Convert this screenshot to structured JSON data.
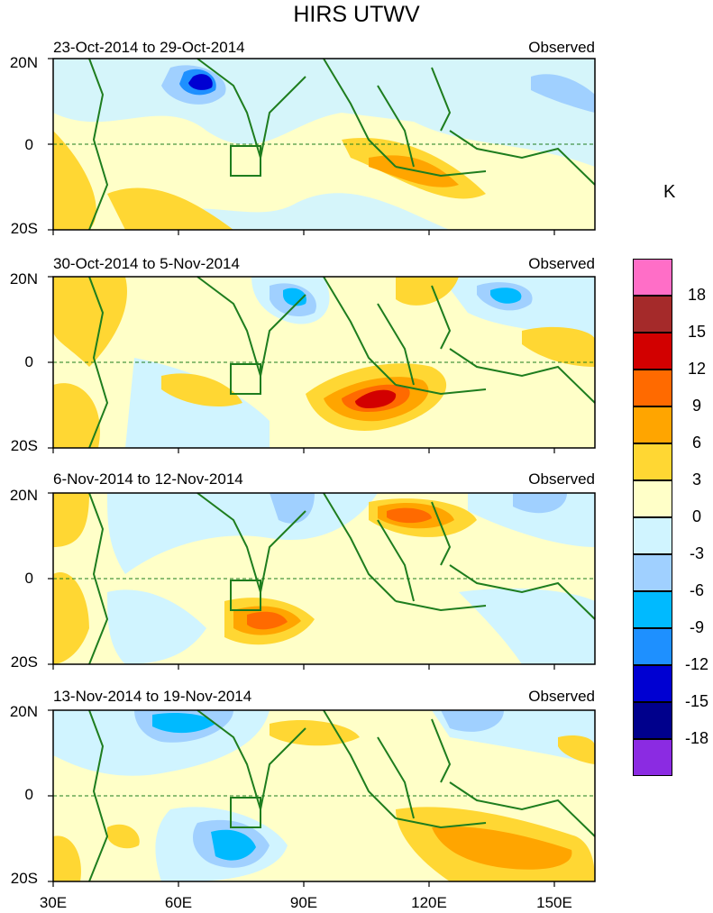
{
  "figure": {
    "title": "HIRS UTWV",
    "units": "K",
    "panel_label": "Observed",
    "y_ticks": [
      "20N",
      "0",
      "20S"
    ],
    "x_ticks": [
      "30E",
      "60E",
      "90E",
      "120E",
      "150E"
    ]
  },
  "panels": [
    {
      "period": "23-Oct-2014 to 29-Oct-2014"
    },
    {
      "period": "30-Oct-2014 to 5-Nov-2014"
    },
    {
      "period": "6-Nov-2014 to 12-Nov-2014"
    },
    {
      "period": "13-Nov-2014 to 19-Nov-2014"
    }
  ],
  "colorbar": {
    "labels": [
      "18",
      "15",
      "12",
      "9",
      "6",
      "3",
      "0",
      "-3",
      "-6",
      "-9",
      "-12",
      "-15",
      "-18"
    ],
    "colors": [
      "#ff6ec7",
      "#a52a2a",
      "#d20000",
      "#ff6a00",
      "#ffa500",
      "#ffd733",
      "#ffffc8",
      "#d0f4ff",
      "#a0d0ff",
      "#00baff",
      "#1e90ff",
      "#0000d2",
      "#00008c",
      "#8b2be2"
    ]
  },
  "map_colors": {
    "coast": "#1e7d1e",
    "equator": "#1e7d1e"
  }
}
